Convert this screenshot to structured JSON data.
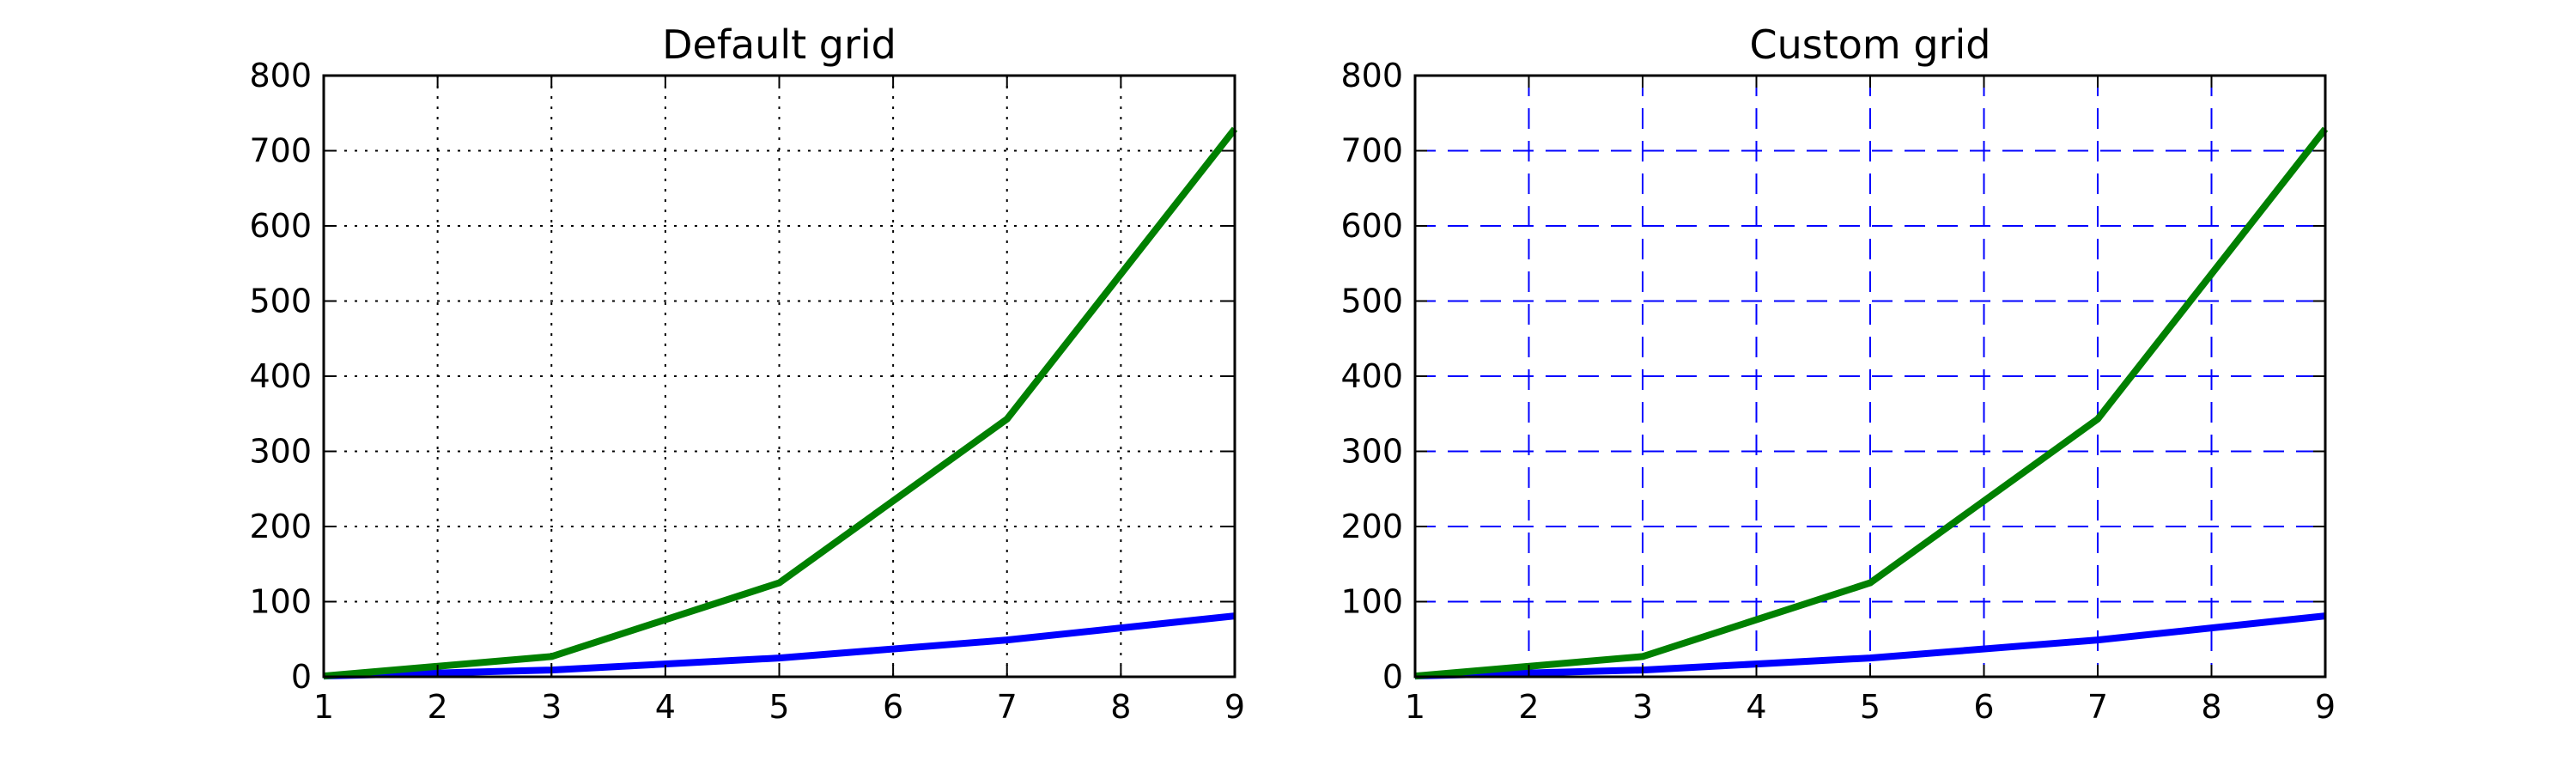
{
  "chart_data": [
    {
      "type": "line",
      "title": "Default grid",
      "xlabel": "",
      "ylabel": "",
      "xlim": [
        1,
        9
      ],
      "ylim": [
        0,
        800
      ],
      "x": [
        1,
        2,
        3,
        4,
        5,
        6,
        7,
        8,
        9
      ],
      "xticks": [
        1,
        2,
        3,
        4,
        5,
        6,
        7,
        8,
        9
      ],
      "yticks": [
        0,
        100,
        200,
        300,
        400,
        500,
        600,
        700,
        800
      ],
      "grid": true,
      "grid_style": "dotted",
      "grid_color": "#000000",
      "series": [
        {
          "color": "#0000ff",
          "x": [
            1,
            3,
            5,
            7,
            9
          ],
          "values": [
            1,
            9,
            25,
            49,
            81
          ]
        },
        {
          "color": "#008000",
          "x": [
            1,
            3,
            5,
            7,
            9
          ],
          "values": [
            1,
            27,
            125,
            343,
            729
          ]
        }
      ]
    },
    {
      "type": "line",
      "title": "Custom grid",
      "xlabel": "",
      "ylabel": "",
      "xlim": [
        1,
        9
      ],
      "ylim": [
        0,
        800
      ],
      "x": [
        1,
        2,
        3,
        4,
        5,
        6,
        7,
        8,
        9
      ],
      "xticks": [
        1,
        2,
        3,
        4,
        5,
        6,
        7,
        8,
        9
      ],
      "yticks": [
        0,
        100,
        200,
        300,
        400,
        500,
        600,
        700,
        800
      ],
      "grid": true,
      "grid_style": "dashed",
      "grid_color": "#0000ff",
      "series": [
        {
          "color": "#0000ff",
          "x": [
            1,
            3,
            5,
            7,
            9
          ],
          "values": [
            1,
            9,
            25,
            49,
            81
          ]
        },
        {
          "color": "#008000",
          "x": [
            1,
            3,
            5,
            7,
            9
          ],
          "values": [
            1,
            27,
            125,
            343,
            729
          ]
        }
      ]
    }
  ]
}
